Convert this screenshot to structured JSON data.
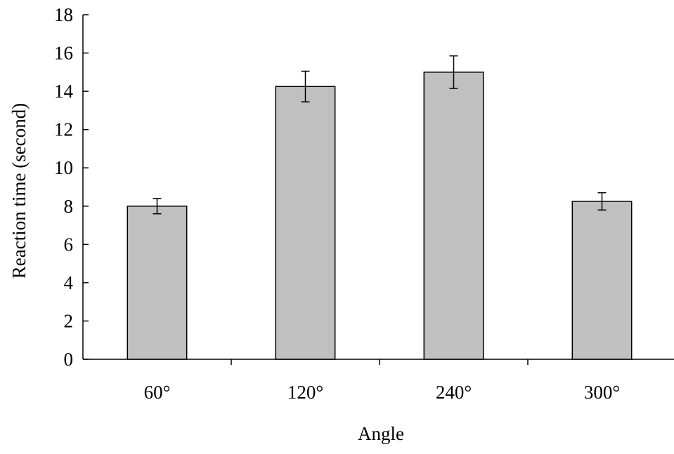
{
  "chart_data": {
    "type": "bar",
    "title": "",
    "xlabel": "Angle",
    "ylabel": "Reaction time (second)",
    "categories": [
      "60°",
      "120°",
      "240°",
      "300°"
    ],
    "values": [
      8.0,
      14.25,
      15.0,
      8.25
    ],
    "error_bars": [
      0.4,
      0.8,
      0.85,
      0.45
    ],
    "ylim": [
      0,
      18
    ],
    "yticks": [
      "0",
      "2",
      "4",
      "6",
      "8",
      "10",
      "12",
      "14",
      "16",
      "18"
    ],
    "grid": false,
    "legend": "none",
    "bar_color": "#c0c0c0",
    "edge_color": "#000000"
  }
}
